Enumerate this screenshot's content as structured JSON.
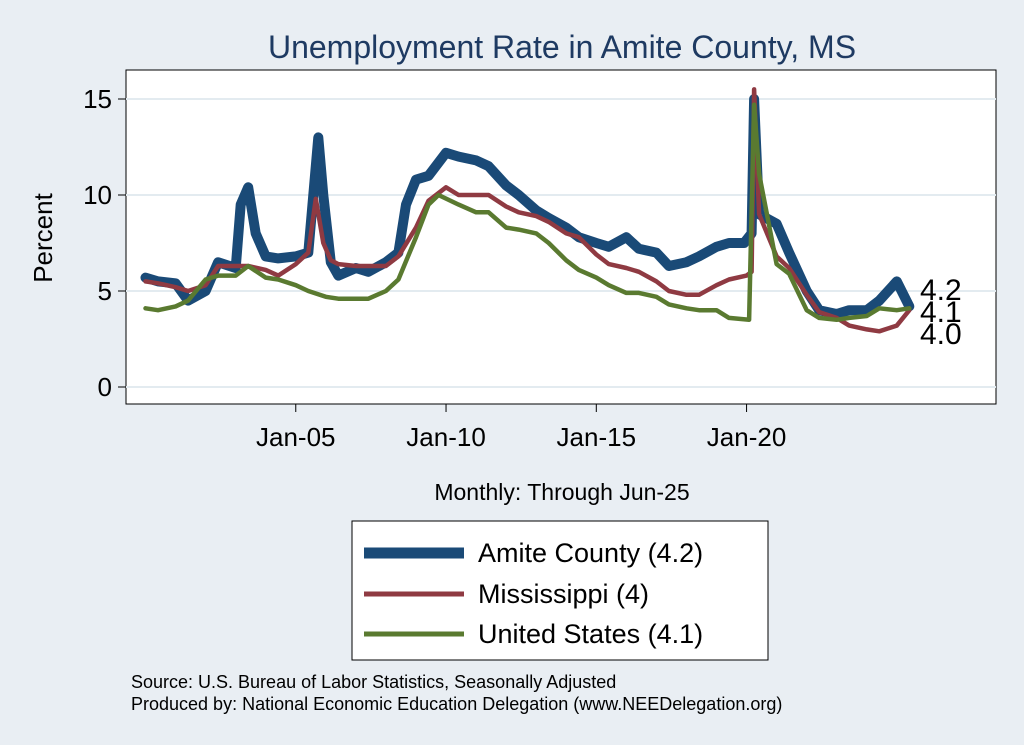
{
  "chart_data": {
    "type": "line",
    "title": "Unemployment Rate in Amite  County, MS",
    "ylabel": "Percent",
    "xlabel": "",
    "note": "Monthly: Through Jun-25",
    "x_ticks": [
      "Jan-05",
      "Jan-10",
      "Jan-15",
      "Jan-20"
    ],
    "y_ticks": [
      "0",
      "5",
      "10",
      "15"
    ],
    "ylim": [
      0,
      16
    ],
    "grid": true,
    "legend_position": "bottom",
    "end_labels": [
      "4.2",
      "4.1",
      "4.0"
    ],
    "series": [
      {
        "name": "Amite  County (4.2)",
        "color": "#1a4a77",
        "points": [
          [
            "2000-01",
            5.7
          ],
          [
            "2000-06",
            5.5
          ],
          [
            "2001-01",
            5.4
          ],
          [
            "2001-06",
            4.5
          ],
          [
            "2002-01",
            5.0
          ],
          [
            "2002-06",
            6.5
          ],
          [
            "2003-01",
            6.2
          ],
          [
            "2003-03",
            9.5
          ],
          [
            "2003-06",
            10.4
          ],
          [
            "2003-09",
            8.0
          ],
          [
            "2004-01",
            6.8
          ],
          [
            "2004-06",
            6.7
          ],
          [
            "2005-01",
            6.8
          ],
          [
            "2005-06",
            7.0
          ],
          [
            "2005-10",
            13.0
          ],
          [
            "2005-12",
            10.0
          ],
          [
            "2006-03",
            6.5
          ],
          [
            "2006-06",
            5.8
          ],
          [
            "2007-01",
            6.2
          ],
          [
            "2007-06",
            6.0
          ],
          [
            "2008-01",
            6.5
          ],
          [
            "2008-06",
            7.0
          ],
          [
            "2008-09",
            9.5
          ],
          [
            "2009-01",
            10.8
          ],
          [
            "2009-06",
            11.0
          ],
          [
            "2010-01",
            12.2
          ],
          [
            "2010-06",
            12.0
          ],
          [
            "2011-01",
            11.8
          ],
          [
            "2011-06",
            11.5
          ],
          [
            "2012-01",
            10.5
          ],
          [
            "2012-06",
            10.0
          ],
          [
            "2013-01",
            9.2
          ],
          [
            "2013-06",
            8.8
          ],
          [
            "2014-01",
            8.3
          ],
          [
            "2014-06",
            7.8
          ],
          [
            "2015-01",
            7.5
          ],
          [
            "2015-06",
            7.3
          ],
          [
            "2016-01",
            7.8
          ],
          [
            "2016-06",
            7.2
          ],
          [
            "2017-01",
            7.0
          ],
          [
            "2017-06",
            6.3
          ],
          [
            "2018-01",
            6.5
          ],
          [
            "2018-06",
            6.8
          ],
          [
            "2019-01",
            7.3
          ],
          [
            "2019-06",
            7.5
          ],
          [
            "2019-12",
            7.5
          ],
          [
            "2020-03",
            8.0
          ],
          [
            "2020-04",
            15.0
          ],
          [
            "2020-06",
            9.0
          ],
          [
            "2021-01",
            8.5
          ],
          [
            "2021-06",
            7.0
          ],
          [
            "2022-01",
            5.0
          ],
          [
            "2022-06",
            4.0
          ],
          [
            "2023-01",
            3.8
          ],
          [
            "2023-06",
            4.0
          ],
          [
            "2024-01",
            4.0
          ],
          [
            "2024-06",
            4.5
          ],
          [
            "2025-01",
            5.5
          ],
          [
            "2025-06",
            4.2
          ]
        ]
      },
      {
        "name": "Mississippi (4)",
        "color": "#8f3a42",
        "points": [
          [
            "2000-01",
            5.5
          ],
          [
            "2000-06",
            5.4
          ],
          [
            "2001-01",
            5.2
          ],
          [
            "2001-06",
            5.0
          ],
          [
            "2002-01",
            5.3
          ],
          [
            "2002-06",
            6.3
          ],
          [
            "2003-01",
            6.3
          ],
          [
            "2003-06",
            6.3
          ],
          [
            "2004-01",
            6.1
          ],
          [
            "2004-06",
            5.8
          ],
          [
            "2005-01",
            6.4
          ],
          [
            "2005-06",
            7.0
          ],
          [
            "2005-09",
            9.8
          ],
          [
            "2005-12",
            7.5
          ],
          [
            "2006-03",
            6.6
          ],
          [
            "2006-06",
            6.4
          ],
          [
            "2007-01",
            6.3
          ],
          [
            "2007-06",
            6.3
          ],
          [
            "2008-01",
            6.3
          ],
          [
            "2008-06",
            6.8
          ],
          [
            "2009-01",
            8.3
          ],
          [
            "2009-06",
            9.7
          ],
          [
            "2010-01",
            10.4
          ],
          [
            "2010-06",
            10.0
          ],
          [
            "2011-01",
            10.0
          ],
          [
            "2011-06",
            10.0
          ],
          [
            "2012-01",
            9.4
          ],
          [
            "2012-06",
            9.1
          ],
          [
            "2013-01",
            8.9
          ],
          [
            "2013-06",
            8.6
          ],
          [
            "2014-01",
            8.0
          ],
          [
            "2014-06",
            7.8
          ],
          [
            "2015-01",
            6.9
          ],
          [
            "2015-06",
            6.4
          ],
          [
            "2016-01",
            6.2
          ],
          [
            "2016-06",
            6.0
          ],
          [
            "2017-01",
            5.5
          ],
          [
            "2017-06",
            5.0
          ],
          [
            "2018-01",
            4.8
          ],
          [
            "2018-06",
            4.8
          ],
          [
            "2019-01",
            5.3
          ],
          [
            "2019-06",
            5.6
          ],
          [
            "2020-01",
            5.8
          ],
          [
            "2020-03",
            6.0
          ],
          [
            "2020-04",
            15.5
          ],
          [
            "2020-06",
            9.0
          ],
          [
            "2021-01",
            6.8
          ],
          [
            "2021-06",
            6.2
          ],
          [
            "2022-01",
            4.8
          ],
          [
            "2022-06",
            3.9
          ],
          [
            "2023-01",
            3.6
          ],
          [
            "2023-06",
            3.2
          ],
          [
            "2024-01",
            3.0
          ],
          [
            "2024-06",
            2.9
          ],
          [
            "2025-01",
            3.2
          ],
          [
            "2025-06",
            4.0
          ]
        ]
      },
      {
        "name": "United States (4.1)",
        "color": "#5a7a30",
        "points": [
          [
            "2000-01",
            4.1
          ],
          [
            "2000-06",
            4.0
          ],
          [
            "2001-01",
            4.2
          ],
          [
            "2001-06",
            4.5
          ],
          [
            "2002-01",
            5.6
          ],
          [
            "2002-06",
            5.8
          ],
          [
            "2003-01",
            5.8
          ],
          [
            "2003-06",
            6.3
          ],
          [
            "2004-01",
            5.7
          ],
          [
            "2004-06",
            5.6
          ],
          [
            "2005-01",
            5.3
          ],
          [
            "2005-06",
            5.0
          ],
          [
            "2006-01",
            4.7
          ],
          [
            "2006-06",
            4.6
          ],
          [
            "2007-01",
            4.6
          ],
          [
            "2007-06",
            4.6
          ],
          [
            "2008-01",
            5.0
          ],
          [
            "2008-06",
            5.6
          ],
          [
            "2009-01",
            7.8
          ],
          [
            "2009-06",
            9.5
          ],
          [
            "2009-10",
            10.0
          ],
          [
            "2010-06",
            9.5
          ],
          [
            "2011-01",
            9.1
          ],
          [
            "2011-06",
            9.1
          ],
          [
            "2012-01",
            8.3
          ],
          [
            "2012-06",
            8.2
          ],
          [
            "2013-01",
            8.0
          ],
          [
            "2013-06",
            7.5
          ],
          [
            "2014-01",
            6.6
          ],
          [
            "2014-06",
            6.1
          ],
          [
            "2015-01",
            5.7
          ],
          [
            "2015-06",
            5.3
          ],
          [
            "2016-01",
            4.9
          ],
          [
            "2016-06",
            4.9
          ],
          [
            "2017-01",
            4.7
          ],
          [
            "2017-06",
            4.3
          ],
          [
            "2018-01",
            4.1
          ],
          [
            "2018-06",
            4.0
          ],
          [
            "2019-01",
            4.0
          ],
          [
            "2019-06",
            3.6
          ],
          [
            "2020-02",
            3.5
          ],
          [
            "2020-04",
            14.7
          ],
          [
            "2020-06",
            11.1
          ],
          [
            "2021-01",
            6.4
          ],
          [
            "2021-06",
            5.9
          ],
          [
            "2022-01",
            4.0
          ],
          [
            "2022-06",
            3.6
          ],
          [
            "2023-01",
            3.5
          ],
          [
            "2023-06",
            3.6
          ],
          [
            "2024-01",
            3.7
          ],
          [
            "2024-06",
            4.1
          ],
          [
            "2025-01",
            4.0
          ],
          [
            "2025-06",
            4.1
          ]
        ]
      }
    ]
  },
  "footer": {
    "source": "Source: U.S. Bureau of Labor Statistics, Seasonally Adjusted",
    "produced": "Produced by: National Economic Education Delegation (www.NEEDelegation.org)"
  }
}
